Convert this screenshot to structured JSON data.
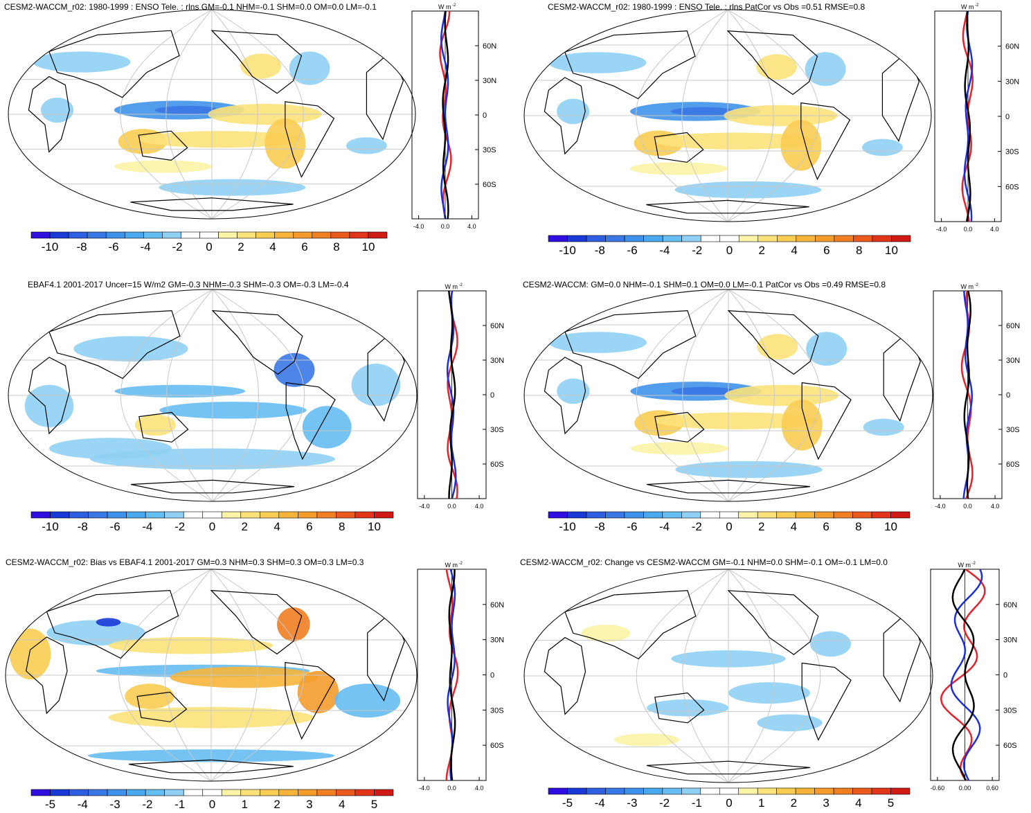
{
  "palette_diff": [
    "#2e0fe0",
    "#1a3ad8",
    "#2e5fe0",
    "#3a78e6",
    "#3f92ea",
    "#49a8ee",
    "#66bdf2",
    "#90d0f4",
    "#ffffff",
    "#ffffff",
    "#fbf3a6",
    "#fbe27a",
    "#f9cc52",
    "#f6b53a",
    "#f49b2c",
    "#f07e22",
    "#ea5a1c",
    "#e23418",
    "#cf1a16"
  ],
  "panels": [
    {
      "title": "CESM2-WACCM_r02: 1980-1999 : ENSO Tele. : rlns GM=-0.1 NHM=-0.1 SHM=0.0 OM=0.0 LM=-0.1",
      "colorbar_ticks": [
        "-10",
        "-8",
        "-6",
        "-4",
        "-2",
        "0",
        "2",
        "4",
        "6",
        "8",
        "10"
      ],
      "zonal_unit": "W m",
      "zonal_unit_sup": "-2",
      "lat_ticks": [
        "60N",
        "30N",
        "0",
        "30S",
        "60S"
      ],
      "x_ticks": [
        "-4.0",
        "0.0",
        "4.0"
      ]
    },
    {
      "title": "CESM2-WACCM_r02: 1980-1999 : ENSO Tele. : rlns PatCor vs Obs =0.51 RMSE=0.8",
      "colorbar_ticks": [
        "-10",
        "-8",
        "-6",
        "-4",
        "-2",
        "0",
        "2",
        "4",
        "6",
        "8",
        "10"
      ],
      "zonal_unit": "W m",
      "zonal_unit_sup": "-2",
      "lat_ticks": [
        "60N",
        "30N",
        "0",
        "30S",
        "60S"
      ],
      "x_ticks": [
        "-4.0",
        "0.0",
        "4.0"
      ]
    },
    {
      "title": "EBAF4.1 2001-2017 Uncer=15 W/m2 GM=-0.3 NHM=-0.3 SHM=-0.3 OM=-0.3 LM=-0.4",
      "colorbar_ticks": [
        "-10",
        "-8",
        "-6",
        "-4",
        "-2",
        "0",
        "2",
        "4",
        "6",
        "8",
        "10"
      ],
      "zonal_unit": "W m",
      "zonal_unit_sup": "-2",
      "lat_ticks": [
        "60N",
        "30N",
        "0",
        "30S",
        "60S"
      ],
      "x_ticks": [
        "-4.0",
        "0.0",
        "4.0"
      ]
    },
    {
      "title": "CESM2-WACCM: GM=0.0 NHM=-0.1 SHM=0.1 OM=0.0 LM=-0.1 PatCor vs Obs =0.49 RMSE=0.8",
      "colorbar_ticks": [
        "-10",
        "-8",
        "-6",
        "-4",
        "-2",
        "0",
        "2",
        "4",
        "6",
        "8",
        "10"
      ],
      "zonal_unit": "W m",
      "zonal_unit_sup": "-2",
      "lat_ticks": [
        "60N",
        "30N",
        "0",
        "30S",
        "60S"
      ],
      "x_ticks": [
        "-4.0",
        "0.0",
        "4.0"
      ]
    },
    {
      "title": "CESM2-WACCM_r02: Bias vs EBAF4.1 2001-2017 GM=0.3 NHM=0.3 SHM=0.3 OM=0.3 LM=0.3",
      "colorbar_ticks": [
        "-5",
        "-4",
        "-3",
        "-2",
        "-1",
        "0",
        "1",
        "2",
        "3",
        "4",
        "5"
      ],
      "zonal_unit": "W m",
      "zonal_unit_sup": "-2",
      "lat_ticks": [
        "60N",
        "30N",
        "0",
        "30S",
        "60S"
      ],
      "x_ticks": [
        "-4.0",
        "0.0",
        "4.0"
      ]
    },
    {
      "title": "CESM2-WACCM_r02: Change vs CESM2-WACCM GM=-0.1 NHM=0.0 SHM=-0.1 OM=-0.1 LM=0.0",
      "colorbar_ticks": [
        "-5",
        "-4",
        "-3",
        "-2",
        "-1",
        "0",
        "1",
        "2",
        "3",
        "4",
        "5"
      ],
      "zonal_unit": "W m",
      "zonal_unit_sup": "-2",
      "lat_ticks": [
        "60N",
        "30N",
        "0",
        "30S",
        "60S"
      ],
      "x_ticks": [
        "-0.60",
        "0.00",
        "0.60"
      ]
    }
  ]
}
